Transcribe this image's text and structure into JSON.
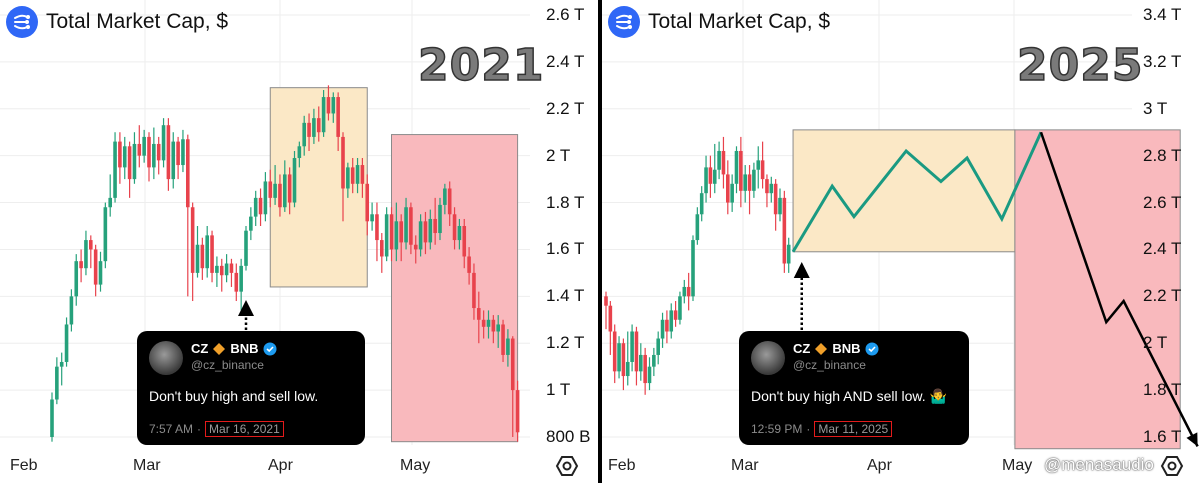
{
  "panels": [
    {
      "id": "2021",
      "header": {
        "title": "Total Market Cap, $",
        "logo_icon": "market-cap-logo-icon"
      },
      "year_label": "2021",
      "tweet": {
        "name": "CZ",
        "badge": "BNB",
        "handle": "@cz_binance",
        "text": "Don't buy high and sell low.",
        "time": "7:57 AM",
        "separator": "·",
        "date": "Mar 16, 2021"
      }
    },
    {
      "id": "2025",
      "header": {
        "title": "Total Market Cap, $",
        "logo_icon": "market-cap-logo-icon"
      },
      "year_label": "2025",
      "tweet": {
        "name": "CZ",
        "badge": "BNB",
        "handle": "@cz_binance",
        "text": "Don't buy high AND sell low. 🤷‍♂️",
        "time": "12:59 PM",
        "separator": "·",
        "date": "Mar 11, 2025"
      }
    }
  ],
  "watermark": "@menasaudio",
  "colors": {
    "up": "#26a17b",
    "down": "#e8424c",
    "range_box": "#fbe8c6",
    "decline_box": "#f9b9bd",
    "projection": "#1a9a82"
  },
  "chart_data": [
    {
      "type": "candlestick",
      "title": "Total Market Cap, $",
      "x_ticks": [
        "Feb",
        "Mar",
        "Apr",
        "May"
      ],
      "y_ticks": [
        "2.6 T",
        "2.4 T",
        "2.2 T",
        "2 T",
        "1.8 T",
        "1.6 T",
        "1.4 T",
        "1.2 T",
        "1 T",
        "800 B"
      ],
      "ylim": [
        0.78,
        2.65
      ],
      "unit": "trillion USD",
      "annotation": "2021",
      "candles": [
        [
          0.8,
          0.96,
          0.78,
          0.99
        ],
        [
          0.96,
          1.1,
          0.94,
          1.14
        ],
        [
          1.1,
          1.12,
          1.02,
          1.16
        ],
        [
          1.12,
          1.28,
          1.1,
          1.31
        ],
        [
          1.28,
          1.4,
          1.25,
          1.43
        ],
        [
          1.4,
          1.55,
          1.36,
          1.58
        ],
        [
          1.55,
          1.52,
          1.46,
          1.6
        ],
        [
          1.52,
          1.64,
          1.49,
          1.68
        ],
        [
          1.64,
          1.6,
          1.52,
          1.66
        ],
        [
          1.6,
          1.45,
          1.4,
          1.62
        ],
        [
          1.45,
          1.55,
          1.42,
          1.59
        ],
        [
          1.55,
          1.78,
          1.52,
          1.8
        ],
        [
          1.78,
          1.82,
          1.74,
          1.92
        ],
        [
          1.82,
          2.06,
          1.8,
          2.1
        ],
        [
          2.06,
          1.95,
          1.88,
          2.1
        ],
        [
          1.95,
          2.04,
          1.9,
          2.08
        ],
        [
          2.04,
          1.9,
          1.82,
          2.06
        ],
        [
          1.9,
          2.05,
          1.88,
          2.1
        ],
        [
          2.05,
          2.0,
          1.95,
          2.13
        ],
        [
          2.0,
          2.08,
          1.97,
          2.11
        ],
        [
          2.08,
          1.95,
          1.89,
          2.1
        ],
        [
          1.95,
          2.05,
          1.9,
          2.12
        ],
        [
          2.05,
          1.98,
          1.92,
          2.08
        ],
        [
          1.98,
          2.13,
          1.95,
          2.16
        ],
        [
          2.13,
          1.9,
          1.85,
          2.16
        ],
        [
          1.9,
          2.06,
          1.86,
          2.1
        ],
        [
          2.06,
          1.96,
          1.9,
          2.08
        ],
        [
          1.96,
          2.07,
          1.93,
          2.11
        ],
        [
          2.07,
          1.78,
          1.4,
          2.09
        ],
        [
          1.78,
          1.5,
          1.38,
          1.8
        ],
        [
          1.5,
          1.62,
          1.48,
          1.7
        ],
        [
          1.62,
          1.52,
          1.47,
          1.65
        ],
        [
          1.52,
          1.66,
          1.48,
          1.7
        ],
        [
          1.66,
          1.5,
          1.46,
          1.68
        ],
        [
          1.5,
          1.53,
          1.44,
          1.57
        ],
        [
          1.53,
          1.49,
          1.42,
          1.56
        ],
        [
          1.49,
          1.54,
          1.46,
          1.58
        ],
        [
          1.54,
          1.5,
          1.44,
          1.56
        ],
        [
          1.5,
          1.42,
          1.38,
          1.54
        ],
        [
          1.42,
          1.53,
          1.34,
          1.56
        ],
        [
          1.53,
          1.68,
          1.51,
          1.7
        ],
        [
          1.68,
          1.74,
          1.64,
          1.78
        ],
        [
          1.74,
          1.82,
          1.7,
          1.85
        ],
        [
          1.82,
          1.75,
          1.7,
          1.86
        ],
        [
          1.75,
          1.89,
          1.72,
          1.93
        ],
        [
          1.89,
          1.82,
          1.78,
          1.94
        ],
        [
          1.82,
          1.88,
          1.79,
          1.96
        ],
        [
          1.88,
          1.78,
          1.74,
          1.92
        ],
        [
          1.78,
          1.92,
          1.76,
          1.98
        ],
        [
          1.92,
          1.8,
          1.75,
          1.95
        ],
        [
          1.8,
          1.99,
          1.78,
          2.02
        ],
        [
          1.99,
          2.04,
          1.95,
          2.06
        ],
        [
          2.04,
          2.14,
          2.0,
          2.17
        ],
        [
          2.14,
          2.08,
          2.02,
          2.18
        ],
        [
          2.08,
          2.16,
          2.05,
          2.2
        ],
        [
          2.16,
          2.1,
          2.06,
          2.21
        ],
        [
          2.1,
          2.25,
          2.08,
          2.28
        ],
        [
          2.25,
          2.18,
          2.15,
          2.3
        ],
        [
          2.18,
          2.25,
          2.14,
          2.27
        ],
        [
          2.25,
          2.08,
          2.02,
          2.27
        ],
        [
          2.08,
          1.86,
          1.72,
          2.1
        ],
        [
          1.86,
          1.95,
          1.82,
          1.97
        ],
        [
          1.95,
          1.88,
          1.84,
          1.99
        ],
        [
          1.88,
          1.96,
          1.84,
          1.99
        ],
        [
          1.96,
          1.88,
          1.82,
          1.99
        ],
        [
          1.88,
          1.72,
          1.66,
          1.92
        ],
        [
          1.72,
          1.75,
          1.68,
          1.8
        ],
        [
          1.75,
          1.64,
          1.55,
          1.8
        ],
        [
          1.64,
          1.57,
          1.5,
          1.67
        ],
        [
          1.57,
          1.75,
          1.55,
          1.78
        ],
        [
          1.75,
          1.6,
          1.55,
          1.78
        ],
        [
          1.6,
          1.72,
          1.55,
          1.8
        ],
        [
          1.72,
          1.63,
          1.55,
          1.75
        ],
        [
          1.63,
          1.78,
          1.6,
          1.82
        ],
        [
          1.78,
          1.62,
          1.58,
          1.8
        ],
        [
          1.62,
          1.6,
          1.54,
          1.66
        ],
        [
          1.6,
          1.72,
          1.57,
          1.75
        ],
        [
          1.72,
          1.63,
          1.58,
          1.76
        ],
        [
          1.63,
          1.73,
          1.6,
          1.77
        ],
        [
          1.73,
          1.67,
          1.62,
          1.82
        ],
        [
          1.67,
          1.79,
          1.64,
          1.82
        ],
        [
          1.79,
          1.86,
          1.75,
          1.88
        ],
        [
          1.86,
          1.75,
          1.7,
          1.89
        ],
        [
          1.75,
          1.64,
          1.6,
          1.78
        ],
        [
          1.64,
          1.7,
          1.6,
          1.73
        ],
        [
          1.7,
          1.57,
          1.52,
          1.73
        ],
        [
          1.57,
          1.5,
          1.45,
          1.61
        ],
        [
          1.5,
          1.35,
          1.3,
          1.54
        ],
        [
          1.35,
          1.3,
          1.2,
          1.42
        ],
        [
          1.3,
          1.27,
          1.22,
          1.34
        ],
        [
          1.27,
          1.3,
          1.22,
          1.34
        ],
        [
          1.3,
          1.25,
          1.2,
          1.32
        ],
        [
          1.25,
          1.28,
          1.18,
          1.32
        ],
        [
          1.28,
          1.15,
          1.12,
          1.3
        ],
        [
          1.15,
          1.22,
          1.1,
          1.26
        ],
        [
          1.22,
          1.0,
          0.8,
          1.23
        ],
        [
          1.0,
          0.82,
          0.78,
          1.04
        ]
      ],
      "range_box": {
        "x_index": [
          45,
          65
        ],
        "y": [
          1.44,
          2.29
        ]
      },
      "decline_box": {
        "x_index": [
          70,
          96
        ],
        "y": [
          0.78,
          2.09
        ]
      },
      "arrow_candle_index": 40
    },
    {
      "type": "candlestick",
      "title": "Total Market Cap, $",
      "x_ticks": [
        "Feb",
        "Mar",
        "Apr",
        "May"
      ],
      "y_ticks": [
        "3.4 T",
        "3.2 T",
        "3 T",
        "2.8 T",
        "2.6 T",
        "2.4 T",
        "2.2 T",
        "2 T",
        "1.8 T",
        "1.6 T"
      ],
      "ylim": [
        1.55,
        3.45
      ],
      "unit": "trillion USD",
      "annotation": "2025",
      "candles": [
        [
          2.2,
          2.16,
          2.06,
          2.22
        ],
        [
          2.16,
          2.05,
          1.95,
          2.18
        ],
        [
          2.05,
          1.88,
          1.83,
          2.08
        ],
        [
          1.88,
          2.0,
          1.85,
          2.03
        ],
        [
          2.0,
          1.86,
          1.8,
          2.02
        ],
        [
          1.86,
          1.92,
          1.82,
          2.05
        ],
        [
          1.92,
          2.05,
          1.88,
          2.08
        ],
        [
          2.05,
          1.88,
          1.82,
          2.07
        ],
        [
          1.88,
          1.95,
          1.84,
          2.0
        ],
        [
          1.95,
          1.83,
          1.78,
          1.98
        ],
        [
          1.83,
          1.9,
          1.8,
          1.94
        ],
        [
          1.9,
          1.95,
          1.86,
          1.98
        ],
        [
          1.95,
          2.02,
          1.91,
          2.05
        ],
        [
          2.02,
          2.1,
          1.98,
          2.13
        ],
        [
          2.1,
          2.05,
          2.0,
          2.14
        ],
        [
          2.05,
          2.14,
          2.02,
          2.17
        ],
        [
          2.14,
          2.1,
          2.07,
          2.18
        ],
        [
          2.1,
          2.2,
          2.08,
          2.22
        ],
        [
          2.2,
          2.24,
          2.17,
          2.27
        ],
        [
          2.24,
          2.2,
          2.14,
          2.3
        ],
        [
          2.2,
          2.44,
          2.18,
          2.46
        ],
        [
          2.44,
          2.55,
          2.42,
          2.58
        ],
        [
          2.55,
          2.64,
          2.52,
          2.67
        ],
        [
          2.64,
          2.75,
          2.6,
          2.8
        ],
        [
          2.75,
          2.68,
          2.62,
          2.8
        ],
        [
          2.68,
          2.74,
          2.64,
          2.85
        ],
        [
          2.74,
          2.82,
          2.7,
          2.86
        ],
        [
          2.82,
          2.72,
          2.66,
          2.88
        ],
        [
          2.72,
          2.6,
          2.55,
          2.78
        ],
        [
          2.6,
          2.68,
          2.56,
          2.72
        ],
        [
          2.68,
          2.82,
          2.64,
          2.84
        ],
        [
          2.82,
          2.65,
          2.58,
          2.88
        ],
        [
          2.65,
          2.72,
          2.6,
          2.76
        ],
        [
          2.72,
          2.65,
          2.55,
          2.76
        ],
        [
          2.65,
          2.74,
          2.62,
          2.77
        ],
        [
          2.74,
          2.78,
          2.66,
          2.84
        ],
        [
          2.78,
          2.7,
          2.66,
          2.86
        ],
        [
          2.7,
          2.64,
          2.58,
          2.72
        ],
        [
          2.64,
          2.68,
          2.6,
          2.71
        ],
        [
          2.68,
          2.55,
          2.48,
          2.7
        ],
        [
          2.55,
          2.62,
          2.52,
          2.66
        ],
        [
          2.62,
          2.34,
          2.3,
          2.65
        ],
        [
          2.34,
          2.42,
          2.3,
          2.45
        ]
      ],
      "range_box": {
        "x_index": [
          43,
          94
        ],
        "y": [
          2.39,
          2.91
        ]
      },
      "decline_box": {
        "x_index": [
          94,
          132
        ],
        "y": [
          1.55,
          2.91
        ]
      },
      "projection_path": [
        [
          43,
          2.39
        ],
        [
          52,
          2.67
        ],
        [
          57,
          2.54
        ],
        [
          69,
          2.82
        ],
        [
          77,
          2.69
        ],
        [
          83,
          2.79
        ],
        [
          91,
          2.53
        ],
        [
          100,
          2.9
        ]
      ],
      "decline_arrow_path": [
        [
          100,
          2.9
        ],
        [
          115,
          2.09
        ],
        [
          119,
          2.18
        ],
        [
          136,
          1.56
        ]
      ],
      "arrow_candle_index": 45
    }
  ]
}
